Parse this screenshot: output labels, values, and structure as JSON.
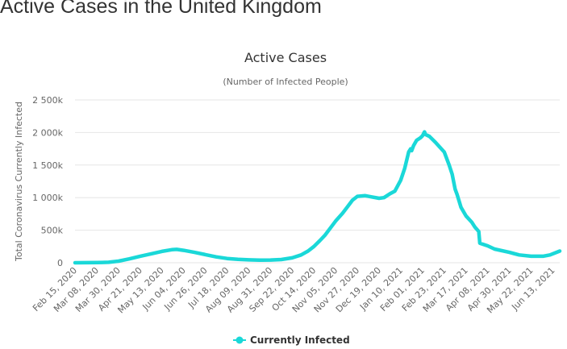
{
  "page": {
    "heading": "Active Cases in the United Kingdom"
  },
  "colors": {
    "series": "#1ad8d8",
    "grid": "#e6e6e6",
    "text": "#666666",
    "title": "#333333"
  },
  "chart_data": {
    "type": "line",
    "title": "Active Cases",
    "subtitle": "(Number of Infected People)",
    "ylabel": "Total Coronavirus Currently Infected",
    "xlabel": "",
    "ylim": [
      0,
      2500000
    ],
    "y_ticks": [
      {
        "value": 0,
        "label": "0"
      },
      {
        "value": 500000,
        "label": "500k"
      },
      {
        "value": 1000000,
        "label": "1 000k"
      },
      {
        "value": 1500000,
        "label": "1 500k"
      },
      {
        "value": 2000000,
        "label": "2 000k"
      },
      {
        "value": 2500000,
        "label": "2 500k"
      }
    ],
    "x_range": [
      "2020-02-15",
      "2021-06-20"
    ],
    "x_ticks": [
      "Feb 15, 2020",
      "Mar 08, 2020",
      "Mar 30, 2020",
      "Apr 21, 2020",
      "May 13, 2020",
      "Jun 04, 2020",
      "Jun 26, 2020",
      "Jul 18, 2020",
      "Aug 09, 2020",
      "Aug 31, 2020",
      "Sep 22, 2020",
      "Oct 14, 2020",
      "Nov 05, 2020",
      "Nov 27, 2020",
      "Dec 19, 2020",
      "Jan 10, 2021",
      "Feb 01, 2021",
      "Feb 23, 2021",
      "Mar 17, 2021",
      "Apr 08, 2021",
      "Apr 30, 2021",
      "May 22, 2021",
      "Jun 13, 2021"
    ],
    "grid": true,
    "legend_position": "bottom-center",
    "series": [
      {
        "name": "Currently Infected",
        "points": [
          [
            "2020-02-15",
            0
          ],
          [
            "2020-03-08",
            2000
          ],
          [
            "2020-03-20",
            8000
          ],
          [
            "2020-03-30",
            25000
          ],
          [
            "2020-04-10",
            60000
          ],
          [
            "2020-04-21",
            100000
          ],
          [
            "2020-05-03",
            140000
          ],
          [
            "2020-05-13",
            175000
          ],
          [
            "2020-05-23",
            200000
          ],
          [
            "2020-05-28",
            205000
          ],
          [
            "2020-06-04",
            190000
          ],
          [
            "2020-06-15",
            160000
          ],
          [
            "2020-06-26",
            125000
          ],
          [
            "2020-07-07",
            90000
          ],
          [
            "2020-07-18",
            65000
          ],
          [
            "2020-07-29",
            52000
          ],
          [
            "2020-08-09",
            45000
          ],
          [
            "2020-08-20",
            40000
          ],
          [
            "2020-08-31",
            42000
          ],
          [
            "2020-09-11",
            50000
          ],
          [
            "2020-09-22",
            75000
          ],
          [
            "2020-10-01",
            120000
          ],
          [
            "2020-10-08",
            180000
          ],
          [
            "2020-10-14",
            250000
          ],
          [
            "2020-10-20",
            340000
          ],
          [
            "2020-10-25",
            420000
          ],
          [
            "2020-11-01",
            560000
          ],
          [
            "2020-11-05",
            640000
          ],
          [
            "2020-11-12",
            760000
          ],
          [
            "2020-11-18",
            880000
          ],
          [
            "2020-11-22",
            960000
          ],
          [
            "2020-11-27",
            1020000
          ],
          [
            "2020-12-05",
            1030000
          ],
          [
            "2020-12-12",
            1010000
          ],
          [
            "2020-12-19",
            990000
          ],
          [
            "2020-12-24",
            1000000
          ],
          [
            "2020-12-30",
            1060000
          ],
          [
            "2021-01-04",
            1100000
          ],
          [
            "2021-01-10",
            1270000
          ],
          [
            "2021-01-14",
            1450000
          ],
          [
            "2021-01-18",
            1700000
          ],
          [
            "2021-01-20",
            1750000
          ],
          [
            "2021-01-21",
            1720000
          ],
          [
            "2021-01-23",
            1800000
          ],
          [
            "2021-01-26",
            1880000
          ],
          [
            "2021-01-30",
            1920000
          ],
          [
            "2021-02-01",
            1950000
          ],
          [
            "2021-02-03",
            2010000
          ],
          [
            "2021-02-04",
            1970000
          ],
          [
            "2021-02-08",
            1940000
          ],
          [
            "2021-02-14",
            1850000
          ],
          [
            "2021-02-23",
            1700000
          ],
          [
            "2021-02-28",
            1500000
          ],
          [
            "2021-03-03",
            1360000
          ],
          [
            "2021-03-06",
            1130000
          ],
          [
            "2021-03-08",
            1050000
          ],
          [
            "2021-03-12",
            850000
          ],
          [
            "2021-03-17",
            720000
          ],
          [
            "2021-03-23",
            620000
          ],
          [
            "2021-03-26",
            550000
          ],
          [
            "2021-03-30",
            480000
          ],
          [
            "2021-03-31",
            300000
          ],
          [
            "2021-04-08",
            260000
          ],
          [
            "2021-04-15",
            210000
          ],
          [
            "2021-04-30",
            160000
          ],
          [
            "2021-05-10",
            120000
          ],
          [
            "2021-05-22",
            100000
          ],
          [
            "2021-06-03",
            100000
          ],
          [
            "2021-06-10",
            120000
          ],
          [
            "2021-06-20",
            180000
          ]
        ]
      }
    ]
  }
}
